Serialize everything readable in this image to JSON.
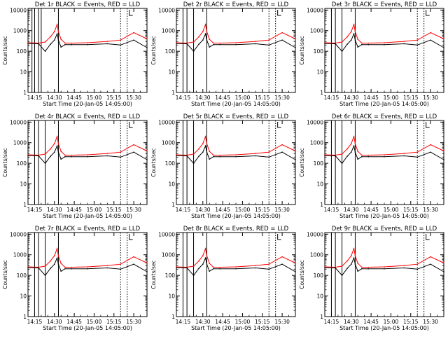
{
  "colors": {
    "events": "#000000",
    "lld": "#ff0000",
    "background": "#ffffff"
  },
  "common": {
    "xlabel": "Start Time (20-Jan-05 14:05:00)",
    "ylabel": "Counts/sec",
    "xtick_labels": [
      "14:15",
      "14:30",
      "14:45",
      "15:00",
      "15:15",
      "15:30"
    ],
    "ytick_labels": [
      "1",
      "10",
      "100",
      "1000",
      "10000"
    ],
    "xlim_min": [
      5,
      95
    ],
    "ylim": [
      1,
      12000
    ],
    "yscale": "log",
    "grid": false
  },
  "panels": [
    {
      "title": "Det 1r BLACK = Events, RED = LLD",
      "markers": [
        8,
        10,
        13,
        15,
        28,
        75,
        80
      ]
    },
    {
      "title": "Det 2r BLACK = Events, RED = LLD",
      "markers": [
        10,
        13,
        18,
        28,
        75,
        80
      ]
    },
    {
      "title": "Det 3r BLACK = Events, RED = LLD",
      "markers": [
        10,
        13,
        18,
        28,
        75,
        80
      ]
    },
    {
      "title": "Det 4r BLACK = Events, RED = LLD",
      "markers": [
        10,
        13,
        18,
        28,
        75,
        80
      ]
    },
    {
      "title": "Det 5r BLACK = Events, RED = LLD",
      "markers": [
        10,
        13,
        18,
        28,
        75,
        80
      ]
    },
    {
      "title": "Det 6r BLACK = Events, RED = LLD",
      "markers": [
        10,
        13,
        18,
        28,
        75,
        80
      ]
    },
    {
      "title": "Det 7r BLACK = Events, RED = LLD",
      "markers": [
        10,
        13,
        18,
        28,
        75,
        80
      ]
    },
    {
      "title": "Det 8r BLACK = Events, RED = LLD",
      "markers": [
        10,
        13,
        18,
        28,
        75,
        80
      ]
    },
    {
      "title": "Det 9r BLACK = Events, RED = LLD",
      "markers": [
        10,
        13,
        18,
        28,
        75,
        80
      ]
    }
  ],
  "chart_data": [
    {
      "type": "line",
      "title": "Det 1r BLACK = Events, RED = LLD",
      "xlabel": "Start Time (20-Jan-05 14:05:00)",
      "ylabel": "Counts/sec",
      "xlim_min": [
        5,
        95
      ],
      "ylim": [
        1,
        12000
      ],
      "yscale": "log",
      "series": [
        {
          "x": [
            5,
            13,
            18,
            22,
            25,
            27,
            28,
            30,
            33,
            38,
            50,
            65,
            75,
            85,
            95
          ],
          "y": [
            260,
            250,
            280,
            500,
            900,
            2000,
            900,
            380,
            250,
            250,
            260,
            300,
            350,
            800,
            400
          ]
        },
        {
          "x": [
            5,
            13,
            18,
            22,
            25,
            27,
            28,
            30,
            33,
            38,
            50,
            65,
            75,
            85,
            95
          ],
          "y": [
            240,
            230,
            100,
            220,
            350,
            700,
            350,
            160,
            210,
            210,
            210,
            230,
            200,
            350,
            150
          ]
        }
      ]
    },
    {
      "type": "line",
      "title": "Det 2r BLACK = Events, RED = LLD",
      "xlabel": "Start Time (20-Jan-05 14:05:00)",
      "ylabel": "Counts/sec",
      "xlim_min": [
        5,
        95
      ],
      "ylim": [
        1,
        12000
      ],
      "yscale": "log",
      "series": [
        {
          "x": [
            5,
            13,
            18,
            22,
            25,
            27,
            28,
            30,
            33,
            38,
            50,
            65,
            75,
            85,
            95
          ],
          "y": [
            260,
            250,
            280,
            500,
            900,
            2000,
            900,
            380,
            250,
            250,
            260,
            300,
            350,
            800,
            400
          ]
        },
        {
          "x": [
            5,
            13,
            18,
            22,
            25,
            27,
            28,
            30,
            33,
            38,
            50,
            65,
            75,
            85,
            95
          ],
          "y": [
            240,
            230,
            100,
            220,
            350,
            700,
            350,
            160,
            210,
            210,
            210,
            230,
            200,
            350,
            150
          ]
        }
      ]
    },
    {
      "type": "line",
      "title": "Det 3r BLACK = Events, RED = LLD",
      "xlabel": "Start Time (20-Jan-05 14:05:00)",
      "ylabel": "Counts/sec",
      "xlim_min": [
        5,
        95
      ],
      "ylim": [
        1,
        12000
      ],
      "yscale": "log",
      "series": [
        {
          "x": [
            5,
            13,
            18,
            22,
            25,
            27,
            28,
            30,
            33,
            38,
            50,
            65,
            75,
            85,
            95
          ],
          "y": [
            260,
            250,
            280,
            500,
            900,
            2000,
            900,
            380,
            250,
            250,
            260,
            300,
            350,
            800,
            400
          ]
        },
        {
          "x": [
            5,
            13,
            18,
            22,
            25,
            27,
            28,
            30,
            33,
            38,
            50,
            65,
            75,
            85,
            95
          ],
          "y": [
            240,
            230,
            100,
            220,
            350,
            700,
            350,
            160,
            210,
            210,
            210,
            230,
            200,
            350,
            150
          ]
        }
      ]
    },
    {
      "type": "line",
      "title": "Det 4r BLACK = Events, RED = LLD",
      "xlabel": "Start Time (20-Jan-05 14:05:00)",
      "ylabel": "Counts/sec",
      "xlim_min": [
        5,
        95
      ],
      "ylim": [
        1,
        12000
      ],
      "yscale": "log",
      "series": [
        {
          "x": [
            5,
            13,
            18,
            22,
            25,
            27,
            28,
            30,
            33,
            38,
            50,
            65,
            75,
            85,
            95
          ],
          "y": [
            260,
            250,
            280,
            500,
            900,
            2000,
            900,
            380,
            250,
            250,
            260,
            300,
            350,
            800,
            400
          ]
        },
        {
          "x": [
            5,
            13,
            18,
            22,
            25,
            27,
            28,
            30,
            33,
            38,
            50,
            65,
            75,
            85,
            95
          ],
          "y": [
            240,
            230,
            100,
            220,
            350,
            700,
            350,
            160,
            210,
            210,
            210,
            230,
            200,
            350,
            150
          ]
        }
      ]
    },
    {
      "type": "line",
      "title": "Det 5r BLACK = Events, RED = LLD",
      "xlabel": "Start Time (20-Jan-05 14:05:00)",
      "ylabel": "Counts/sec",
      "xlim_min": [
        5,
        95
      ],
      "ylim": [
        1,
        12000
      ],
      "yscale": "log",
      "series": [
        {
          "x": [
            5,
            13,
            18,
            22,
            25,
            27,
            28,
            30,
            33,
            38,
            50,
            65,
            75,
            85,
            95
          ],
          "y": [
            260,
            250,
            280,
            500,
            900,
            2000,
            900,
            380,
            250,
            250,
            260,
            300,
            350,
            800,
            400
          ]
        },
        {
          "x": [
            5,
            13,
            18,
            22,
            25,
            27,
            28,
            30,
            33,
            38,
            50,
            65,
            75,
            85,
            95
          ],
          "y": [
            240,
            230,
            100,
            220,
            350,
            700,
            350,
            160,
            210,
            210,
            210,
            230,
            200,
            350,
            150
          ]
        }
      ]
    },
    {
      "type": "line",
      "title": "Det 6r BLACK = Events, RED = LLD",
      "xlabel": "Start Time (20-Jan-05 14:05:00)",
      "ylabel": "Counts/sec",
      "xlim_min": [
        5,
        95
      ],
      "ylim": [
        1,
        12000
      ],
      "yscale": "log",
      "series": [
        {
          "x": [
            5,
            13,
            18,
            22,
            25,
            27,
            28,
            30,
            33,
            38,
            50,
            65,
            75,
            85,
            95
          ],
          "y": [
            260,
            250,
            280,
            500,
            900,
            2000,
            900,
            380,
            250,
            250,
            260,
            300,
            350,
            800,
            400
          ]
        },
        {
          "x": [
            5,
            13,
            18,
            22,
            25,
            27,
            28,
            30,
            33,
            38,
            50,
            65,
            75,
            85,
            95
          ],
          "y": [
            240,
            230,
            100,
            220,
            350,
            700,
            350,
            160,
            210,
            210,
            210,
            230,
            200,
            350,
            150
          ]
        }
      ]
    },
    {
      "type": "line",
      "title": "Det 7r BLACK = Events, RED = LLD",
      "xlabel": "Start Time (20-Jan-05 14:05:00)",
      "ylabel": "Counts/sec",
      "xlim_min": [
        5,
        95
      ],
      "ylim": [
        1,
        12000
      ],
      "yscale": "log",
      "series": [
        {
          "x": [
            5,
            13,
            18,
            22,
            25,
            27,
            28,
            30,
            33,
            38,
            50,
            65,
            75,
            85,
            95
          ],
          "y": [
            260,
            250,
            280,
            500,
            900,
            2000,
            900,
            380,
            250,
            250,
            260,
            300,
            350,
            800,
            400
          ]
        },
        {
          "x": [
            5,
            13,
            18,
            22,
            25,
            27,
            28,
            30,
            33,
            38,
            50,
            65,
            75,
            85,
            95
          ],
          "y": [
            240,
            230,
            100,
            220,
            350,
            700,
            350,
            160,
            210,
            210,
            210,
            230,
            200,
            350,
            150
          ]
        }
      ]
    },
    {
      "type": "line",
      "title": "Det 8r BLACK = Events, RED = LLD",
      "xlabel": "Start Time (20-Jan-05 14:05:00)",
      "ylabel": "Counts/sec",
      "xlim_min": [
        5,
        95
      ],
      "ylim": [
        1,
        12000
      ],
      "yscale": "log",
      "series": [
        {
          "x": [
            5,
            13,
            18,
            22,
            25,
            27,
            28,
            30,
            33,
            38,
            50,
            65,
            75,
            85,
            95
          ],
          "y": [
            260,
            250,
            280,
            500,
            900,
            2000,
            900,
            380,
            250,
            250,
            260,
            300,
            350,
            800,
            400
          ]
        },
        {
          "x": [
            5,
            13,
            18,
            22,
            25,
            27,
            28,
            30,
            33,
            38,
            50,
            65,
            75,
            85,
            95
          ],
          "y": [
            240,
            230,
            100,
            220,
            350,
            700,
            350,
            160,
            210,
            210,
            210,
            230,
            200,
            350,
            150
          ]
        }
      ]
    },
    {
      "type": "line",
      "title": "Det 9r BLACK = Events, RED = LLD",
      "xlabel": "Start Time (20-Jan-05 14:05:00)",
      "ylabel": "Counts/sec",
      "xlim_min": [
        5,
        95
      ],
      "ylim": [
        1,
        12000
      ],
      "yscale": "log",
      "series": [
        {
          "x": [
            5,
            13,
            18,
            22,
            25,
            27,
            28,
            30,
            33,
            38,
            50,
            65,
            75,
            85,
            95
          ],
          "y": [
            260,
            250,
            280,
            500,
            900,
            2000,
            900,
            380,
            250,
            250,
            260,
            300,
            350,
            800,
            400
          ]
        },
        {
          "x": [
            5,
            13,
            18,
            22,
            25,
            27,
            28,
            30,
            33,
            38,
            50,
            65,
            75,
            85,
            95
          ],
          "y": [
            240,
            230,
            100,
            220,
            350,
            700,
            350,
            160,
            210,
            210,
            210,
            230,
            200,
            350,
            150
          ]
        }
      ]
    }
  ]
}
